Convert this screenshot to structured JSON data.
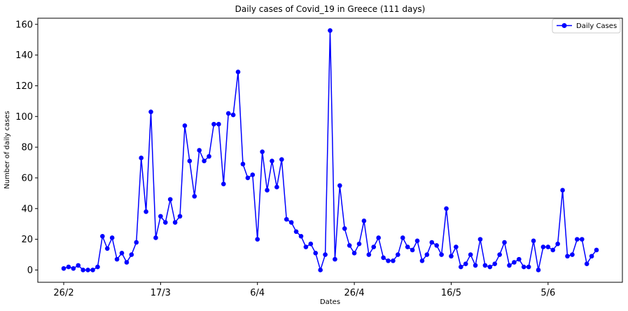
{
  "chart_data": {
    "type": "line",
    "title": "Daily cases of Covid_19 in Greece (111 days)",
    "xlabel": "Dates",
    "ylabel": "Number of daily cases",
    "x_tick_labels": [
      "26/2",
      "17/3",
      "6/4",
      "26/4",
      "16/5",
      "5/6"
    ],
    "x_tick_indices": [
      0,
      20,
      40,
      60,
      80,
      100
    ],
    "ylim": [
      -8,
      164
    ],
    "y_ticks": [
      0,
      20,
      40,
      60,
      80,
      100,
      120,
      140,
      160
    ],
    "grid": false,
    "legend_position": "top-right",
    "series": [
      {
        "name": "Daily Cases",
        "color": "#0000ff",
        "marker": "circle",
        "values": [
          1,
          2,
          1,
          3,
          0,
          0,
          0,
          2,
          22,
          14,
          21,
          7,
          11,
          5,
          10,
          18,
          73,
          38,
          103,
          21,
          35,
          31,
          46,
          31,
          35,
          94,
          71,
          48,
          78,
          71,
          74,
          95,
          95,
          56,
          102,
          101,
          129,
          69,
          60,
          62,
          20,
          77,
          52,
          71,
          54,
          72,
          33,
          31,
          25,
          22,
          15,
          17,
          11,
          0,
          10,
          156,
          7,
          55,
          27,
          16,
          11,
          17,
          32,
          10,
          15,
          21,
          8,
          6,
          6,
          10,
          21,
          15,
          13,
          19,
          6,
          10,
          18,
          16,
          10,
          40,
          9,
          15,
          2,
          4,
          10,
          3,
          20,
          3,
          2,
          4,
          10,
          18,
          3,
          5,
          7,
          2,
          2,
          19,
          0,
          15,
          15,
          13,
          17,
          52,
          9,
          10,
          20,
          20,
          4,
          9,
          13
        ]
      }
    ]
  }
}
